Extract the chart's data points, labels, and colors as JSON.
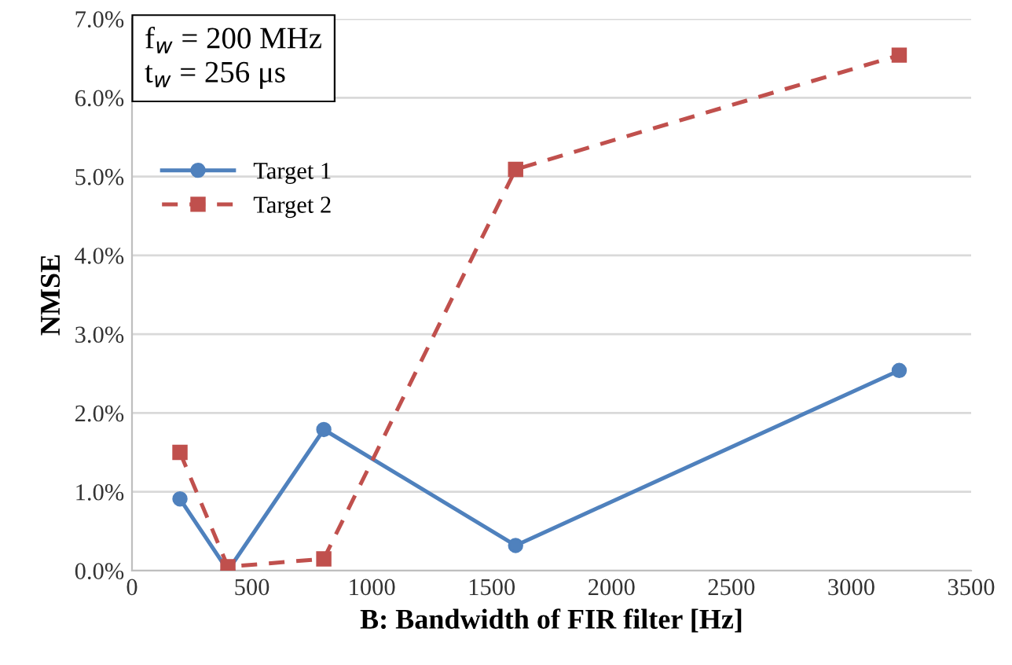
{
  "chart_data": {
    "type": "line",
    "xlabel": "B: Bandwidth of FIR filter [Hz]",
    "ylabel": "NMSE",
    "annotations": [
      "f$_{w}$ = 200 MHz",
      "t$_{w}$ = 256 μs"
    ],
    "x": [
      200,
      400,
      800,
      1600,
      3200
    ],
    "series": [
      {
        "name": "Target 1",
        "color": "#4f81bd",
        "marker": "circle",
        "line_style": "solid",
        "values": [
          0.91,
          0.0,
          1.79,
          0.32,
          2.54
        ]
      },
      {
        "name": "Target 2",
        "color": "#c0504d",
        "marker": "square",
        "line_style": "dashed",
        "values": [
          1.5,
          0.05,
          0.15,
          5.09,
          6.54
        ]
      }
    ],
    "xlim": [
      0,
      3500
    ],
    "xticks": [
      0,
      500,
      1000,
      1500,
      2000,
      2500,
      3000,
      3500
    ],
    "ylim": [
      0,
      7
    ],
    "yticks": [
      {
        "value": 0,
        "label": "0.0%"
      },
      {
        "value": 1,
        "label": "1.0%"
      },
      {
        "value": 2,
        "label": "2.0%"
      },
      {
        "value": 3,
        "label": "3.0%"
      },
      {
        "value": 4,
        "label": "4.0%"
      },
      {
        "value": 5,
        "label": "5.0%"
      },
      {
        "value": 6,
        "label": "6.0%"
      },
      {
        "value": 7,
        "label": "7.0%"
      }
    ],
    "grid": "y",
    "legend": "top left"
  }
}
